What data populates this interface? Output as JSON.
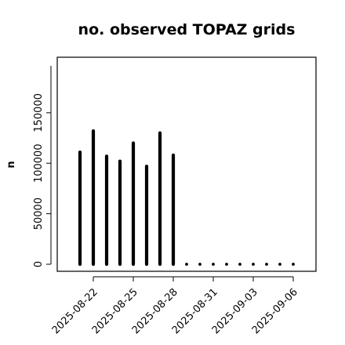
{
  "chart_data": {
    "type": "bar",
    "title": "no. observed TOPAZ grids",
    "xlabel": "",
    "ylabel": "n",
    "ylim": [
      -7000,
      205000
    ],
    "yticks": [
      0,
      50000,
      100000,
      150000
    ],
    "ytick_labels": [
      "0",
      "50000",
      "100000",
      "150000"
    ],
    "x": [
      "2025-08-21",
      "2025-08-22",
      "2025-08-23",
      "2025-08-24",
      "2025-08-25",
      "2025-08-26",
      "2025-08-27",
      "2025-08-28",
      "2025-08-29",
      "2025-08-30",
      "2025-08-31",
      "2025-09-01",
      "2025-09-02",
      "2025-09-03",
      "2025-09-04",
      "2025-09-05",
      "2025-09-06"
    ],
    "values": [
      111000,
      132000,
      107000,
      102000,
      120000,
      97000,
      130000,
      108000,
      0,
      0,
      0,
      0,
      0,
      0,
      0,
      0,
      0
    ],
    "xticks": [
      "2025-08-22",
      "2025-08-25",
      "2025-08-28",
      "2025-08-31",
      "2025-09-03",
      "2025-09-06"
    ],
    "highlight_tick": "2025-08-28",
    "colors": {
      "bars": "#000000",
      "highlight_label": "#228b22",
      "axis": "#000000"
    },
    "grid": false,
    "legend": "none"
  }
}
